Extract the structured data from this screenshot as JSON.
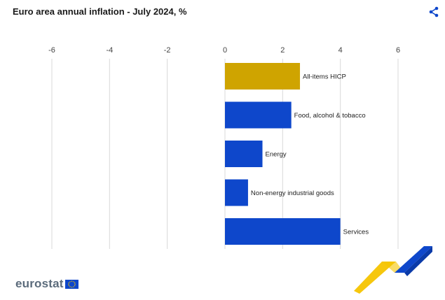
{
  "header": {
    "title": "Euro area annual inflation - July 2024, %"
  },
  "icons": {
    "share": "share-icon",
    "flag": "eu-flag-icon"
  },
  "branding": {
    "logo_text": "eurostat"
  },
  "colors": {
    "highlight_bar": "#CFA400",
    "bar": "#0E47CB",
    "gridline": "#D9D9D9",
    "share_icon": "#0E47CB",
    "ribbon_yellow": "#F5C400",
    "ribbon_blue": "#0E47CB"
  },
  "chart_data": {
    "type": "bar",
    "orientation": "horizontal",
    "title": "Euro area annual inflation - July 2024, %",
    "categories": [
      "All-items HICP",
      "Food, alcohol & tobacco",
      "Energy",
      "Non-energy industrial goods",
      "Services"
    ],
    "values": [
      2.6,
      2.3,
      1.3,
      0.8,
      4.0
    ],
    "highlighted_category": "All-items HICP",
    "xlim": [
      -6,
      7
    ],
    "xticks": [
      -6,
      -4,
      -2,
      0,
      2,
      4,
      6
    ],
    "xlabel": "",
    "ylabel": "",
    "grid": "vertical",
    "axis_position": "top"
  }
}
